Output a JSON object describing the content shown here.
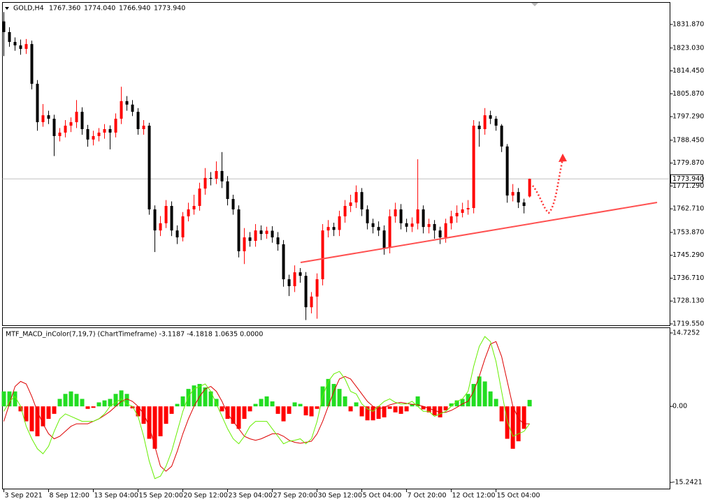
{
  "chart_data": [
    {
      "type": "candlestick",
      "title": "GOLD,H4",
      "header_prices": [
        "1767.360",
        "1774.040",
        "1766.940",
        "1773.940"
      ],
      "open": [
        1833.0,
        1829.0,
        1825.3,
        1824.0,
        1822.7,
        1824.5,
        1809.6,
        1795.2,
        1797.8,
        1796.5,
        1790.0,
        1791.3,
        1793.9,
        1795.2,
        1799.1,
        1792.6,
        1788.7,
        1790.0,
        1791.3,
        1792.6,
        1791.3,
        1796.5,
        1803.1,
        1801.8,
        1799.1,
        1792.6,
        1793.9,
        1762.5,
        1754.6,
        1757.3,
        1763.8,
        1754.6,
        1752.0,
        1759.9,
        1762.5,
        1763.8,
        1770.3,
        1774.3,
        1774.0,
        1776.9,
        1773.0,
        1766.4,
        1762.5,
        1746.8,
        1752.0,
        1750.7,
        1754.6,
        1753.3,
        1754.5,
        1752.0,
        1749.4,
        1736.3,
        1733.7,
        1738.9,
        1737.6,
        1725.8,
        1729.8,
        1736.3,
        1754.6,
        1755.9,
        1754.8,
        1759.9,
        1763.8,
        1765.1,
        1769.0,
        1762.5,
        1757.3,
        1755.9,
        1754.6,
        1748.1,
        1759.9,
        1762.5,
        1757.3,
        1756.0,
        1757.2,
        1762.5,
        1755.9,
        1757.0,
        1754.6,
        1752.0,
        1757.3,
        1759.9,
        1761.2,
        1762.5,
        1763.0,
        1793.9,
        1792.6,
        1797.8,
        1796.5,
        1793.9,
        1786.1,
        1767.7,
        1769.0,
        1765.1,
        1767.36
      ],
      "high": [
        1836.5,
        1830.8,
        1827.0,
        1826.2,
        1826.4,
        1825.8,
        1811.0,
        1802.0,
        1799.5,
        1798.0,
        1793.0,
        1796.0,
        1797.0,
        1803.5,
        1800.8,
        1794.2,
        1792.0,
        1793.0,
        1794.5,
        1794.0,
        1798.5,
        1808.5,
        1805.0,
        1803.5,
        1800.5,
        1796.0,
        1795.0,
        1764.0,
        1760.0,
        1766.0,
        1765.5,
        1756.5,
        1761.5,
        1765.0,
        1768.0,
        1772.5,
        1778.0,
        1776.5,
        1780.5,
        1784.0,
        1775.0,
        1768.0,
        1764.0,
        1755.5,
        1754.0,
        1757.0,
        1756.5,
        1756.0,
        1756.2,
        1754.0,
        1751.0,
        1738.0,
        1741.5,
        1740.5,
        1739.0,
        1731.5,
        1738.5,
        1757.0,
        1758.5,
        1757.5,
        1762.0,
        1766.0,
        1768.0,
        1771.5,
        1770.5,
        1764.0,
        1759.0,
        1758.0,
        1756.5,
        1762.5,
        1765.0,
        1764.5,
        1759.0,
        1759.5,
        1781.3,
        1764.0,
        1759.0,
        1758.5,
        1756.0,
        1759.0,
        1762.0,
        1764.0,
        1765.0,
        1766.0,
        1796.0,
        1795.5,
        1800.5,
        1799.5,
        1797.5,
        1794.5,
        1787.0,
        1772.0,
        1770.5,
        1766.5,
        1774.04
      ],
      "low": [
        1820.0,
        1823.5,
        1822.0,
        1820.5,
        1820.8,
        1807.5,
        1792.0,
        1793.5,
        1794.5,
        1782.5,
        1788.0,
        1789.5,
        1791.5,
        1793.0,
        1790.5,
        1786.0,
        1786.5,
        1788.0,
        1789.0,
        1785.0,
        1789.5,
        1794.5,
        1799.5,
        1797.5,
        1790.5,
        1790.5,
        1760.5,
        1746.5,
        1752.5,
        1755.5,
        1752.5,
        1749.5,
        1750.5,
        1758.0,
        1760.5,
        1762.0,
        1768.0,
        1771.5,
        1772.0,
        1770.5,
        1764.0,
        1760.5,
        1744.5,
        1742.0,
        1748.5,
        1748.5,
        1751.0,
        1751.5,
        1750.0,
        1747.0,
        1733.5,
        1730.0,
        1731.5,
        1735.0,
        1721.0,
        1723.5,
        1721.5,
        1734.0,
        1752.0,
        1752.5,
        1752.5,
        1757.5,
        1761.5,
        1763.0,
        1760.0,
        1755.0,
        1753.5,
        1752.5,
        1745.5,
        1746.0,
        1757.5,
        1755.0,
        1754.0,
        1754.0,
        1755.0,
        1753.5,
        1753.5,
        1751.5,
        1749.5,
        1750.0,
        1755.0,
        1757.5,
        1759.5,
        1760.5,
        1761.0,
        1786.0,
        1790.5,
        1794.5,
        1792.0,
        1784.0,
        1765.0,
        1765.5,
        1763.0,
        1761.0,
        1766.94
      ],
      "close": [
        1829.0,
        1825.3,
        1824.0,
        1822.7,
        1824.5,
        1809.6,
        1795.2,
        1797.8,
        1796.5,
        1790.0,
        1791.3,
        1793.9,
        1795.2,
        1799.1,
        1792.6,
        1788.7,
        1790.0,
        1791.3,
        1792.6,
        1791.3,
        1796.5,
        1803.1,
        1801.8,
        1799.1,
        1792.6,
        1793.9,
        1762.5,
        1754.6,
        1757.3,
        1763.8,
        1754.6,
        1752.0,
        1759.9,
        1762.5,
        1763.8,
        1770.3,
        1774.3,
        1774.0,
        1776.9,
        1773.0,
        1766.4,
        1762.5,
        1746.8,
        1752.0,
        1750.7,
        1754.6,
        1753.3,
        1754.5,
        1752.0,
        1749.4,
        1736.3,
        1733.7,
        1738.9,
        1737.6,
        1725.8,
        1729.8,
        1736.3,
        1754.6,
        1755.9,
        1754.8,
        1759.9,
        1763.8,
        1765.1,
        1769.0,
        1762.5,
        1757.3,
        1755.9,
        1754.6,
        1748.1,
        1759.9,
        1762.5,
        1757.3,
        1756.0,
        1757.2,
        1762.5,
        1755.9,
        1757.0,
        1754.6,
        1752.0,
        1757.3,
        1759.9,
        1761.2,
        1762.5,
        1763.0,
        1793.9,
        1792.6,
        1797.8,
        1796.5,
        1793.9,
        1786.1,
        1767.7,
        1769.0,
        1765.1,
        1763.8,
        1773.94
      ],
      "up_color": "#ff0000",
      "down_color": "#000000",
      "xlim": [
        -0.25,
        119.1
      ],
      "ylim": [
        1719.03,
        1839.72
      ],
      "yticks": [
        {
          "value": 1831.87,
          "label": "1831.870"
        },
        {
          "value": 1823.03,
          "label": "1823.030"
        },
        {
          "value": 1814.45,
          "label": "1814.450"
        },
        {
          "value": 1805.87,
          "label": "1805.870"
        },
        {
          "value": 1797.29,
          "label": "1797.290"
        },
        {
          "value": 1788.45,
          "label": "1788.450"
        },
        {
          "value": 1779.87,
          "label": "1779.870"
        },
        {
          "value": 1771.29,
          "label": "1771.290"
        },
        {
          "value": 1762.71,
          "label": "1762.710"
        },
        {
          "value": 1753.87,
          "label": "1753.870"
        },
        {
          "value": 1745.29,
          "label": "1745.290"
        },
        {
          "value": 1736.71,
          "label": "1736.710"
        },
        {
          "value": 1728.13,
          "label": "1728.130"
        },
        {
          "value": 1719.55,
          "label": "1719.550"
        }
      ],
      "current_price": {
        "value": 1773.94,
        "label": "1773.940"
      }
    },
    {
      "type": "macd",
      "title": "MTF_MACD_inColor(7,19,7) (ChartTimeframe) -3.1187 -4.1818 1.0635 0.0000",
      "histogram": [
        3,
        3,
        3,
        -1,
        -3,
        -5,
        -6,
        -4,
        -2.5,
        -1.5,
        1.5,
        2.5,
        3,
        2.5,
        1.5,
        -0.5,
        -0.3,
        0.8,
        1.2,
        1.5,
        2.5,
        3.2,
        2.5,
        -0.4,
        -2,
        -3.5,
        -6.5,
        -8.5,
        -6,
        -3.5,
        -1.5,
        0.5,
        2,
        3.5,
        4.2,
        4.5,
        3.8,
        3,
        1.5,
        -1,
        -2.5,
        -3.5,
        -4.5,
        -2.5,
        -1,
        0.5,
        1.5,
        2,
        1,
        -1.5,
        -3,
        -1.5,
        0.8,
        0.5,
        -1.8,
        -2,
        -0.5,
        4,
        5.5,
        4.5,
        3.5,
        2,
        -1,
        0.8,
        -2,
        -2.8,
        -2.8,
        -2.5,
        -2.2,
        -0.5,
        -1.2,
        -1.5,
        -1,
        0.5,
        2,
        -0.6,
        -1.2,
        -1.8,
        -2.2,
        -0.8,
        0.6,
        1.2,
        1.5,
        2.5,
        4.5,
        6,
        5,
        3,
        1.5,
        -3,
        -6.5,
        -8.5,
        -7,
        -4.5,
        1.3
      ],
      "macd": [
        -1,
        1,
        2,
        0,
        -4,
        -6.5,
        -8.5,
        -9.5,
        -8,
        -5,
        -2.5,
        -1.5,
        -2,
        -2.5,
        -3,
        -3,
        -3,
        -2.5,
        -1.5,
        0,
        0.8,
        1.5,
        0.5,
        0,
        -2,
        -6,
        -11,
        -14.5,
        -14,
        -12,
        -9,
        -5,
        -1,
        2,
        3.5,
        4,
        4.5,
        3,
        0.5,
        -2,
        -4.5,
        -6.5,
        -7.5,
        -6,
        -4,
        -3,
        -3,
        -3,
        -4.5,
        -6,
        -7.5,
        -7,
        -6.8,
        -6.5,
        -7.5,
        -6.5,
        -3,
        2,
        5,
        6.5,
        7,
        5.5,
        3,
        2.5,
        0.5,
        -0.5,
        -1,
        0,
        1,
        1.5,
        0.8,
        0.5,
        0.5,
        1,
        0,
        -1,
        -1,
        -2,
        -1.5,
        -1,
        0,
        1,
        1.5,
        3,
        8,
        12,
        14,
        13,
        9,
        3,
        -3,
        -6,
        -5.5,
        -5,
        -3.5
      ],
      "signal": [
        -3,
        0.5,
        4,
        5,
        4.5,
        2,
        -1,
        -3.5,
        -5.5,
        -6.5,
        -6,
        -5,
        -4,
        -3.5,
        -3.5,
        -3.5,
        -3,
        -2.5,
        -1.8,
        -1,
        0,
        1,
        1.5,
        1,
        0,
        -1.5,
        -4,
        -8,
        -12,
        -13,
        -12,
        -9,
        -5.5,
        -2.5,
        0,
        2,
        3.5,
        4,
        3,
        1,
        -1.5,
        -3,
        -4.5,
        -6,
        -6.5,
        -6.8,
        -6.5,
        -6,
        -5.5,
        -5.5,
        -6,
        -6.8,
        -7.2,
        -7.4,
        -7.2,
        -7,
        -5.5,
        -3,
        0,
        3,
        5.5,
        6,
        5.5,
        4,
        2.5,
        1,
        0,
        -0.5,
        -0.2,
        0.3,
        0.6,
        0.8,
        0.6,
        0.4,
        0.3,
        0,
        -0.4,
        -0.8,
        -1.2,
        -1.2,
        -0.8,
        -0.2,
        0.5,
        1,
        3,
        6,
        9.5,
        12.5,
        13,
        10,
        5,
        0,
        -2.5,
        -3.5,
        -3.5
      ],
      "up_color": "#22dd22",
      "down_color": "#ff0000",
      "macd_color": "#66ee00",
      "signal_color": "#dd0000",
      "xlim": [
        -0.25,
        119.1
      ],
      "ylim": [
        -16.5,
        15.7
      ],
      "yticks": [
        {
          "value": 14.7252,
          "label": "14.7252"
        },
        {
          "value": 0,
          "label": "0.00"
        },
        {
          "value": -15.2421,
          "label": "-15.2421"
        }
      ],
      "xticks": [
        {
          "value": 0,
          "label": "3 Sep 2021"
        },
        {
          "value": 8,
          "label": "8 Sep 12:00"
        },
        {
          "value": 16,
          "label": "13 Sep 04:00"
        },
        {
          "value": 24,
          "label": "15 Sep 20:00"
        },
        {
          "value": 32,
          "label": "20 Sep 12:00"
        },
        {
          "value": 40,
          "label": "23 Sep 04:00"
        },
        {
          "value": 48,
          "label": "27 Sep 20:00"
        },
        {
          "value": 56,
          "label": "30 Sep 12:00"
        },
        {
          "value": 64,
          "label": "5 Oct 04:00"
        },
        {
          "value": 72,
          "label": "7 Oct 20:00"
        },
        {
          "value": 80,
          "label": "12 Oct 12:00"
        },
        {
          "value": 88,
          "label": "15 Oct 04:00"
        }
      ]
    }
  ]
}
